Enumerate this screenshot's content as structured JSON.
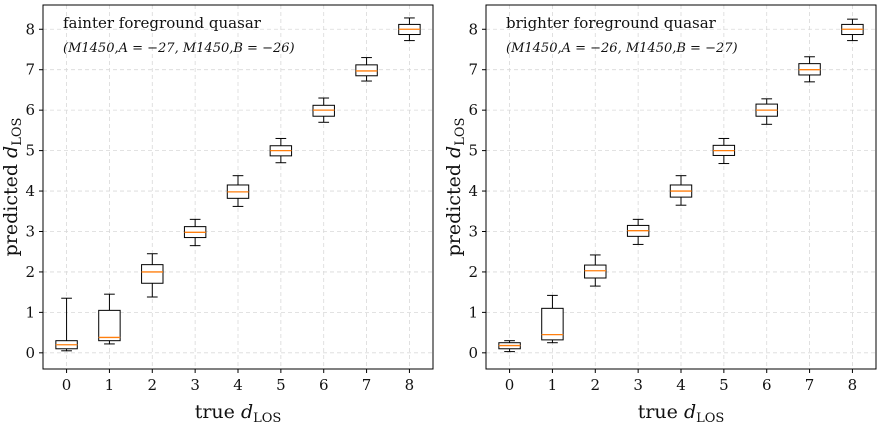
{
  "chart_data": [
    {
      "type": "box",
      "xlabel_main": "true ",
      "xlabel_sym": "d",
      "xlabel_sub": "LOS",
      "ylabel_main": "predicted ",
      "ylabel_sym": "d",
      "ylabel_sub": "LOS",
      "annotation": "fainter foreground quasar",
      "annotation_sub": "(M1450,A = −27, M1450,B = −26)",
      "xlim": [
        -0.55,
        8.55
      ],
      "ylim": [
        -0.4,
        8.6
      ],
      "x_ticks": [
        "0",
        "1",
        "2",
        "3",
        "4",
        "5",
        "6",
        "7",
        "8"
      ],
      "y_ticks": [
        "0",
        "1",
        "2",
        "3",
        "4",
        "5",
        "6",
        "7",
        "8"
      ],
      "grid": true,
      "box_color": "#000000",
      "median_color": "#ff7f0e",
      "boxes": [
        {
          "x": 0,
          "whislo": 0.05,
          "q1": 0.1,
          "med": 0.2,
          "q3": 0.3,
          "whishi": 1.35
        },
        {
          "x": 1,
          "whislo": 0.22,
          "q1": 0.3,
          "med": 0.38,
          "q3": 1.05,
          "whishi": 1.45
        },
        {
          "x": 2,
          "whislo": 1.38,
          "q1": 1.72,
          "med": 2.0,
          "q3": 2.18,
          "whishi": 2.45
        },
        {
          "x": 3,
          "whislo": 2.65,
          "q1": 2.85,
          "med": 2.98,
          "q3": 3.12,
          "whishi": 3.3
        },
        {
          "x": 4,
          "whislo": 3.62,
          "q1": 3.82,
          "med": 3.98,
          "q3": 4.15,
          "whishi": 4.38
        },
        {
          "x": 5,
          "whislo": 4.7,
          "q1": 4.87,
          "med": 5.0,
          "q3": 5.12,
          "whishi": 5.3
        },
        {
          "x": 6,
          "whislo": 5.7,
          "q1": 5.85,
          "med": 6.0,
          "q3": 6.12,
          "whishi": 6.3
        },
        {
          "x": 7,
          "whislo": 6.72,
          "q1": 6.85,
          "med": 6.97,
          "q3": 7.12,
          "whishi": 7.3
        },
        {
          "x": 8,
          "whislo": 7.72,
          "q1": 7.87,
          "med": 8.0,
          "q3": 8.12,
          "whishi": 8.28
        }
      ]
    },
    {
      "type": "box",
      "xlabel_main": "true ",
      "xlabel_sym": "d",
      "xlabel_sub": "LOS",
      "ylabel_main": "predicted ",
      "ylabel_sym": "d",
      "ylabel_sub": "LOS",
      "annotation": "brighter foreground quasar",
      "annotation_sub": "(M1450,A = −26, M1450,B = −27)",
      "xlim": [
        -0.55,
        8.55
      ],
      "ylim": [
        -0.4,
        8.6
      ],
      "x_ticks": [
        "0",
        "1",
        "2",
        "3",
        "4",
        "5",
        "6",
        "7",
        "8"
      ],
      "y_ticks": [
        "0",
        "1",
        "2",
        "3",
        "4",
        "5",
        "6",
        "7",
        "8"
      ],
      "grid": true,
      "box_color": "#000000",
      "median_color": "#ff7f0e",
      "boxes": [
        {
          "x": 0,
          "whislo": 0.03,
          "q1": 0.1,
          "med": 0.18,
          "q3": 0.25,
          "whishi": 0.3
        },
        {
          "x": 1,
          "whislo": 0.25,
          "q1": 0.32,
          "med": 0.45,
          "q3": 1.1,
          "whishi": 1.42
        },
        {
          "x": 2,
          "whislo": 1.65,
          "q1": 1.85,
          "med": 2.03,
          "q3": 2.17,
          "whishi": 2.42
        },
        {
          "x": 3,
          "whislo": 2.68,
          "q1": 2.88,
          "med": 3.02,
          "q3": 3.15,
          "whishi": 3.3
        },
        {
          "x": 4,
          "whislo": 3.65,
          "q1": 3.85,
          "med": 4.0,
          "q3": 4.15,
          "whishi": 4.38
        },
        {
          "x": 5,
          "whislo": 4.68,
          "q1": 4.88,
          "med": 5.0,
          "q3": 5.13,
          "whishi": 5.3
        },
        {
          "x": 6,
          "whislo": 5.65,
          "q1": 5.85,
          "med": 6.0,
          "q3": 6.15,
          "whishi": 6.28
        },
        {
          "x": 7,
          "whislo": 6.7,
          "q1": 6.87,
          "med": 7.0,
          "q3": 7.15,
          "whishi": 7.32
        },
        {
          "x": 8,
          "whislo": 7.72,
          "q1": 7.87,
          "med": 8.0,
          "q3": 8.12,
          "whishi": 8.25
        }
      ]
    }
  ]
}
